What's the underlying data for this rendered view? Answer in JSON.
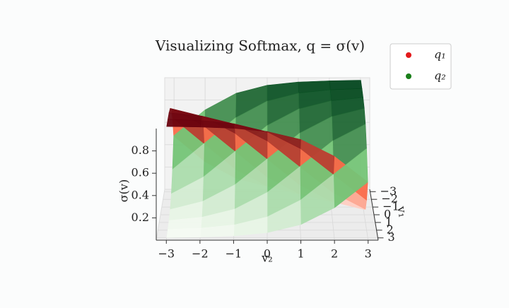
{
  "chart_data": {
    "type": "surface3d",
    "title": "Visualizing Softmax, q = σ(v)",
    "x_label": "v₂",
    "y_label": "v₁",
    "z_label": "σ(v)",
    "x": [
      -3,
      -2,
      -1,
      0,
      1,
      2,
      3
    ],
    "y": [
      -3,
      -2,
      -1,
      0,
      1,
      2,
      3
    ],
    "xlim": [
      -3.3,
      3.3
    ],
    "ylim": [
      -3.3,
      3.3
    ],
    "zlim": [
      0,
      1
    ],
    "xticks": [
      {
        "value": -3,
        "label": "−3"
      },
      {
        "value": -2,
        "label": "−2"
      },
      {
        "value": -1,
        "label": "−1"
      },
      0,
      1,
      2,
      3
    ],
    "yticks": [
      {
        "value": -3,
        "label": "−3"
      },
      {
        "value": -2,
        "label": "−2"
      },
      {
        "value": -1,
        "label": "−1"
      },
      0,
      1,
      2,
      3
    ],
    "zticks": [
      0.2,
      0.4,
      0.6,
      0.8
    ],
    "series": [
      {
        "name": "q₁",
        "color": "#e31a1c",
        "colormap": [
          "#fff5f0",
          "#fb6a4a",
          "#67000d"
        ],
        "values": [
          [
            0.5,
            0.269,
            0.119,
            0.047,
            0.018,
            0.007,
            0.002
          ],
          [
            0.731,
            0.5,
            0.269,
            0.119,
            0.047,
            0.018,
            0.007
          ],
          [
            0.881,
            0.731,
            0.5,
            0.269,
            0.119,
            0.047,
            0.018
          ],
          [
            0.953,
            0.881,
            0.731,
            0.5,
            0.269,
            0.119,
            0.047
          ],
          [
            0.982,
            0.953,
            0.881,
            0.731,
            0.5,
            0.269,
            0.119
          ],
          [
            0.993,
            0.982,
            0.953,
            0.881,
            0.731,
            0.5,
            0.269
          ],
          [
            0.998,
            0.993,
            0.982,
            0.953,
            0.881,
            0.731,
            0.5
          ]
        ]
      },
      {
        "name": "q₂",
        "color": "#1a7f1a",
        "colormap": [
          "#f7fcf5",
          "#74c476",
          "#00441b"
        ],
        "values": [
          [
            0.5,
            0.731,
            0.881,
            0.953,
            0.982,
            0.993,
            0.998
          ],
          [
            0.269,
            0.5,
            0.731,
            0.881,
            0.953,
            0.982,
            0.993
          ],
          [
            0.119,
            0.269,
            0.5,
            0.731,
            0.881,
            0.953,
            0.982
          ],
          [
            0.047,
            0.119,
            0.269,
            0.5,
            0.731,
            0.881,
            0.953
          ],
          [
            0.018,
            0.047,
            0.119,
            0.269,
            0.5,
            0.731,
            0.881
          ],
          [
            0.007,
            0.018,
            0.047,
            0.119,
            0.269,
            0.5,
            0.731
          ],
          [
            0.002,
            0.007,
            0.018,
            0.047,
            0.119,
            0.269,
            0.5
          ]
        ]
      }
    ],
    "grid": true,
    "legend": "upper right"
  }
}
